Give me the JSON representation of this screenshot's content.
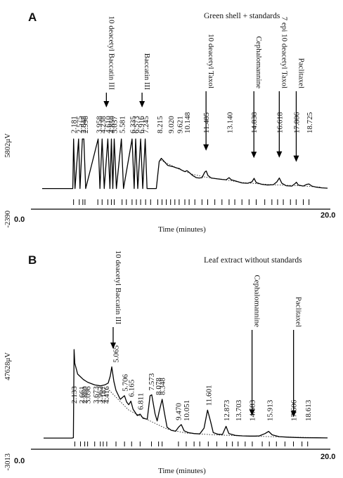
{
  "chart_data": [
    {
      "type": "line",
      "panel": "A",
      "title": "Green shell + standards",
      "xlabel": "Time (minutes)",
      "ylabel": "",
      "xlim": [
        0.0,
        20.0
      ],
      "ylim": [
        -2390,
        5802
      ],
      "x_tick_labels": [
        "0.0",
        "20.0"
      ],
      "y_top_label": "5802µV",
      "y_bottom_label": "-2390",
      "peaks": [
        {
          "rt": "2.181",
          "x": 2.181,
          "tall": true
        },
        {
          "rt": "2.575",
          "x": 2.575,
          "tall": true
        },
        {
          "rt": "2.848",
          "x": 2.848,
          "tall": true
        },
        {
          "rt": "2.996",
          "x": 2.996,
          "tall": true
        },
        {
          "rt": "3.958",
          "x": 3.958,
          "tall": true
        },
        {
          "rt": "4.238",
          "x": 4.238,
          "tall": true
        },
        {
          "rt": "4.610",
          "x": 4.61,
          "tall": true
        },
        {
          "rt": "4.850",
          "x": 4.85,
          "tall": true
        },
        {
          "rt": "5.037",
          "x": 5.037,
          "tall": true
        },
        {
          "rt": "5.581",
          "x": 5.581,
          "tall": true
        },
        {
          "rt": "6.335",
          "x": 6.335,
          "tall": true
        },
        {
          "rt": "6.573",
          "x": 6.573,
          "tall": true
        },
        {
          "rt": "6.916",
          "x": 6.916,
          "tall": true
        },
        {
          "rt": "7.245",
          "x": 7.245,
          "tall": true
        },
        {
          "rt": "8.215",
          "x": 8.215,
          "tall": false
        },
        {
          "rt": "9.020",
          "x": 9.02,
          "tall": false
        },
        {
          "rt": "9.621",
          "x": 9.621,
          "tall": false
        },
        {
          "rt": "10.148",
          "x": 10.148,
          "tall": false
        },
        {
          "rt": "11.485",
          "x": 11.485,
          "tall": false
        },
        {
          "rt": "13.140",
          "x": 13.14,
          "tall": false
        },
        {
          "rt": "14.838",
          "x": 14.838,
          "tall": false
        },
        {
          "rt": "16.618",
          "x": 16.618,
          "tall": false
        },
        {
          "rt": "17.806",
          "x": 17.806,
          "tall": false
        },
        {
          "rt": "18.725",
          "x": 18.725,
          "tall": false
        }
      ],
      "trace": [
        [
          0.0,
          -1250
        ],
        [
          2.15,
          -1250
        ],
        [
          2.2,
          5802
        ],
        [
          2.3,
          -1250
        ],
        [
          2.55,
          5802
        ],
        [
          2.65,
          -1250
        ],
        [
          2.82,
          5802
        ],
        [
          2.92,
          5802
        ],
        [
          3.05,
          -1250
        ],
        [
          3.92,
          5802
        ],
        [
          4.05,
          -1250
        ],
        [
          4.2,
          5802
        ],
        [
          4.35,
          -1250
        ],
        [
          4.6,
          5802
        ],
        [
          4.75,
          -1250
        ],
        [
          4.85,
          5802
        ],
        [
          4.95,
          -1250
        ],
        [
          5.05,
          5802
        ],
        [
          5.2,
          -1250
        ],
        [
          5.55,
          5802
        ],
        [
          5.7,
          -1250
        ],
        [
          6.3,
          5802
        ],
        [
          6.45,
          -1250
        ],
        [
          6.55,
          5802
        ],
        [
          6.7,
          -1250
        ],
        [
          6.9,
          5802
        ],
        [
          7.05,
          -1250
        ],
        [
          7.22,
          5802
        ],
        [
          7.35,
          -1250
        ],
        [
          8.0,
          -1250
        ],
        [
          8.2,
          2600
        ],
        [
          8.35,
          3050
        ],
        [
          8.55,
          2600
        ],
        [
          8.8,
          2050
        ],
        [
          9.0,
          1950
        ],
        [
          9.2,
          1850
        ],
        [
          9.4,
          1700
        ],
        [
          9.6,
          1600
        ],
        [
          9.75,
          1400
        ],
        [
          10.0,
          1150
        ],
        [
          10.15,
          1300
        ],
        [
          10.3,
          1050
        ],
        [
          10.55,
          600
        ],
        [
          10.8,
          300
        ],
        [
          11.0,
          250
        ],
        [
          11.2,
          300
        ],
        [
          11.4,
          1100
        ],
        [
          11.5,
          1250
        ],
        [
          11.62,
          600
        ],
        [
          11.85,
          250
        ],
        [
          12.2,
          150
        ],
        [
          12.6,
          50
        ],
        [
          12.9,
          0
        ],
        [
          13.1,
          300
        ],
        [
          13.25,
          0
        ],
        [
          13.6,
          -200
        ],
        [
          14.0,
          -450
        ],
        [
          14.4,
          -500
        ],
        [
          14.7,
          -300
        ],
        [
          14.85,
          200
        ],
        [
          15.0,
          -400
        ],
        [
          15.4,
          -650
        ],
        [
          15.8,
          -750
        ],
        [
          16.2,
          -700
        ],
        [
          16.45,
          -300
        ],
        [
          16.62,
          250
        ],
        [
          16.8,
          -500
        ],
        [
          17.1,
          -850
        ],
        [
          17.5,
          -900
        ],
        [
          17.75,
          -500
        ],
        [
          17.82,
          -350
        ],
        [
          17.95,
          -750
        ],
        [
          18.3,
          -900
        ],
        [
          18.55,
          -650
        ],
        [
          18.7,
          -600
        ],
        [
          18.9,
          -900
        ],
        [
          19.2,
          -1050
        ],
        [
          19.6,
          -1150
        ],
        [
          20.0,
          -1200
        ]
      ],
      "baseline": [
        [
          8.3,
          2800
        ],
        [
          9.5,
          1600
        ],
        [
          10.5,
          800
        ],
        [
          11.5,
          350
        ],
        [
          12.5,
          100
        ],
        [
          14.0,
          -400
        ],
        [
          16.0,
          -700
        ],
        [
          18.0,
          -850
        ],
        [
          19.5,
          -1050
        ]
      ],
      "ticks": [
        2.2,
        2.6,
        2.85,
        3.0,
        3.9,
        4.2,
        4.6,
        4.85,
        5.05,
        5.6,
        5.9,
        6.3,
        6.6,
        6.9,
        7.25,
        7.6,
        8.1,
        8.4,
        8.7,
        9.0,
        9.3,
        9.6,
        10.0,
        10.3,
        10.7,
        11.2,
        11.6,
        12.1,
        12.6,
        13.1,
        13.5,
        14.0,
        14.5,
        15.0,
        15.6,
        16.1,
        16.5,
        16.9,
        17.4,
        17.8,
        18.3,
        18.7
      ],
      "standards": [
        {
          "label": "10 deacetyl Baccatin III",
          "x": 4.5
        },
        {
          "label": "Baccatin III",
          "x": 7.0
        },
        {
          "label": "10 deacetyl Taxol",
          "x": 11.485
        },
        {
          "label": "Cephalomannine",
          "x": 14.838
        },
        {
          "label": "7 epi 10 deacetyl Taxol",
          "x": 16.618
        },
        {
          "label": "Paclitaxel",
          "x": 17.806
        }
      ]
    },
    {
      "type": "line",
      "panel": "B",
      "title": "Leaf extract without standards",
      "xlabel": "Time (minutes)",
      "ylabel": "",
      "xlim": [
        0.0,
        20.0
      ],
      "ylim": [
        -3013,
        47628
      ],
      "x_tick_labels": [
        "0.0",
        "20.0"
      ],
      "y_top_label": "47628µV",
      "y_bottom_label": "-3013",
      "peaks": [
        {
          "rt": "2.133",
          "x": 2.133,
          "tall": false
        },
        {
          "rt": "2.661",
          "x": 2.661,
          "tall": false
        },
        {
          "rt": "2.860",
          "x": 2.86,
          "tall": false
        },
        {
          "rt": "3.096",
          "x": 3.096,
          "tall": false
        },
        {
          "rt": "3.673",
          "x": 3.673,
          "tall": false
        },
        {
          "rt": "3.962",
          "x": 3.962,
          "tall": false
        },
        {
          "rt": "4.187",
          "x": 4.187,
          "tall": false
        },
        {
          "rt": "4.416",
          "x": 4.416,
          "tall": false
        },
        {
          "rt": "5.065",
          "x": 5.065,
          "tall": false
        },
        {
          "rt": "5.706",
          "x": 5.706,
          "tall": false
        },
        {
          "rt": "6.165",
          "x": 6.165,
          "tall": false
        },
        {
          "rt": "6.811",
          "x": 6.811,
          "tall": false
        },
        {
          "rt": "7.573",
          "x": 7.573,
          "tall": false
        },
        {
          "rt": "8.078",
          "x": 8.078,
          "tall": false
        },
        {
          "rt": "8.348",
          "x": 8.348,
          "tall": false
        },
        {
          "rt": "9.470",
          "x": 9.47,
          "tall": false
        },
        {
          "rt": "10.051",
          "x": 10.051,
          "tall": false
        },
        {
          "rt": "11.601",
          "x": 11.601,
          "tall": false
        },
        {
          "rt": "12.873",
          "x": 12.873,
          "tall": false
        },
        {
          "rt": "13.703",
          "x": 13.703,
          "tall": false
        },
        {
          "rt": "14.683",
          "x": 14.683,
          "tall": false
        },
        {
          "rt": "15.913",
          "x": 15.913,
          "tall": false
        },
        {
          "rt": "17.606",
          "x": 17.606,
          "tall": false
        },
        {
          "rt": "18.613",
          "x": 18.613,
          "tall": false
        }
      ],
      "trace": [
        [
          0.0,
          -1500
        ],
        [
          2.0,
          -1500
        ],
        [
          2.1,
          -1300
        ],
        [
          2.15,
          47628
        ],
        [
          2.2,
          40000
        ],
        [
          2.4,
          34000
        ],
        [
          2.8,
          31000
        ],
        [
          3.1,
          29500
        ],
        [
          3.6,
          28000
        ],
        [
          4.0,
          27500
        ],
        [
          4.3,
          28000
        ],
        [
          4.55,
          29000
        ],
        [
          4.7,
          33000
        ],
        [
          4.8,
          38000
        ],
        [
          4.95,
          30000
        ],
        [
          5.1,
          25000
        ],
        [
          5.4,
          20000
        ],
        [
          5.7,
          22000
        ],
        [
          5.85,
          18500
        ],
        [
          6.0,
          17000
        ],
        [
          6.15,
          19000
        ],
        [
          6.3,
          14500
        ],
        [
          6.6,
          11000
        ],
        [
          6.8,
          11800
        ],
        [
          7.0,
          9500
        ],
        [
          7.3,
          9000
        ],
        [
          7.5,
          22000
        ],
        [
          7.62,
          22500
        ],
        [
          7.85,
          12000
        ],
        [
          8.0,
          8000
        ],
        [
          8.15,
          13500
        ],
        [
          8.35,
          20000
        ],
        [
          8.5,
          13000
        ],
        [
          8.7,
          4500
        ],
        [
          9.0,
          2800
        ],
        [
          9.3,
          2300
        ],
        [
          9.5,
          4500
        ],
        [
          9.7,
          6000
        ],
        [
          9.9,
          2500
        ],
        [
          10.2,
          1500
        ],
        [
          10.6,
          1000
        ],
        [
          11.0,
          800
        ],
        [
          11.3,
          4000
        ],
        [
          11.55,
          14000
        ],
        [
          11.75,
          8000
        ],
        [
          11.95,
          1500
        ],
        [
          12.3,
          600
        ],
        [
          12.6,
          500
        ],
        [
          12.85,
          5000
        ],
        [
          13.05,
          1000
        ],
        [
          13.5,
          0
        ],
        [
          14.0,
          -300
        ],
        [
          14.5,
          -400
        ],
        [
          14.9,
          -400
        ],
        [
          15.2,
          -300
        ],
        [
          15.6,
          1000
        ],
        [
          15.85,
          2200
        ],
        [
          16.1,
          300
        ],
        [
          16.6,
          -700
        ],
        [
          17.2,
          -1000
        ],
        [
          17.8,
          -1200
        ],
        [
          18.4,
          -1300
        ],
        [
          19.2,
          -1350
        ],
        [
          20.0,
          -1400
        ]
      ],
      "baseline": [
        [
          4.5,
          26000
        ],
        [
          6.0,
          14000
        ],
        [
          7.5,
          8000
        ],
        [
          8.7,
          3500
        ],
        [
          10.0,
          1300
        ],
        [
          12.0,
          300
        ],
        [
          14.5,
          -400
        ],
        [
          17.0,
          -900
        ],
        [
          19.5,
          -1300
        ]
      ],
      "ticks": [
        2.2,
        2.6,
        2.9,
        3.1,
        3.6,
        4.0,
        4.2,
        4.45,
        5.1,
        5.7,
        6.2,
        6.8,
        7.6,
        8.1,
        8.35,
        9.5,
        10.05,
        10.6,
        11.0,
        11.6,
        12.2,
        12.9,
        13.3,
        13.7,
        14.2,
        14.7,
        15.4,
        15.9,
        16.4,
        17.0,
        17.6,
        18.2,
        18.6
      ],
      "standards": [
        {
          "label": "10 deacetyl Baccatin III",
          "x": 4.9
        },
        {
          "label": "Cephalomannine",
          "x": 14.683
        },
        {
          "label": "Paclitaxel",
          "x": 17.606
        }
      ]
    }
  ]
}
